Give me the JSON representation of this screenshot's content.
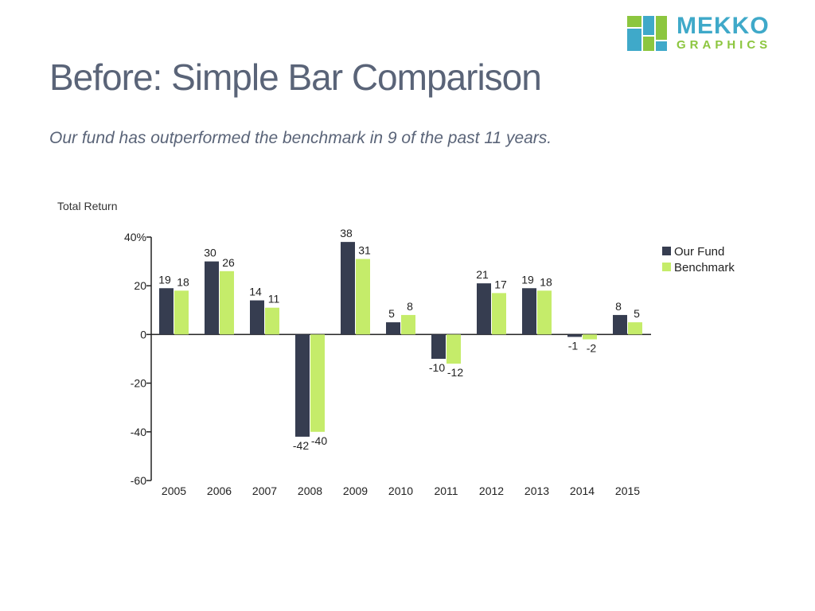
{
  "header": {
    "title": "Before: Simple Bar Comparison",
    "subtitle": "Our fund has outperformed the benchmark in 9 of the past 11 years."
  },
  "logo": {
    "line1": "MEKKO",
    "line2": "GRAPHICS",
    "icon": "mekko-logo-icon"
  },
  "chart_data": {
    "type": "bar",
    "ylabel": "Total Return",
    "ylim": [
      -60,
      40
    ],
    "yticks": [
      {
        "value": 40,
        "label": "40%"
      },
      {
        "value": 20,
        "label": "20"
      },
      {
        "value": 0,
        "label": "0"
      },
      {
        "value": -20,
        "label": "-20"
      },
      {
        "value": -40,
        "label": "-40"
      },
      {
        "value": -60,
        "label": "-60"
      }
    ],
    "categories": [
      "2005",
      "2006",
      "2007",
      "2008",
      "2009",
      "2010",
      "2011",
      "2012",
      "2013",
      "2014",
      "2015"
    ],
    "series": [
      {
        "name": "Our Fund",
        "color": "#363d50",
        "values": [
          19,
          30,
          14,
          -42,
          38,
          5,
          -10,
          21,
          19,
          -1,
          8
        ]
      },
      {
        "name": "Benchmark",
        "color": "#c5ec6a",
        "values": [
          18,
          26,
          11,
          -40,
          31,
          8,
          -12,
          17,
          18,
          -2,
          5
        ]
      }
    ],
    "legend": "right",
    "grid": false
  }
}
